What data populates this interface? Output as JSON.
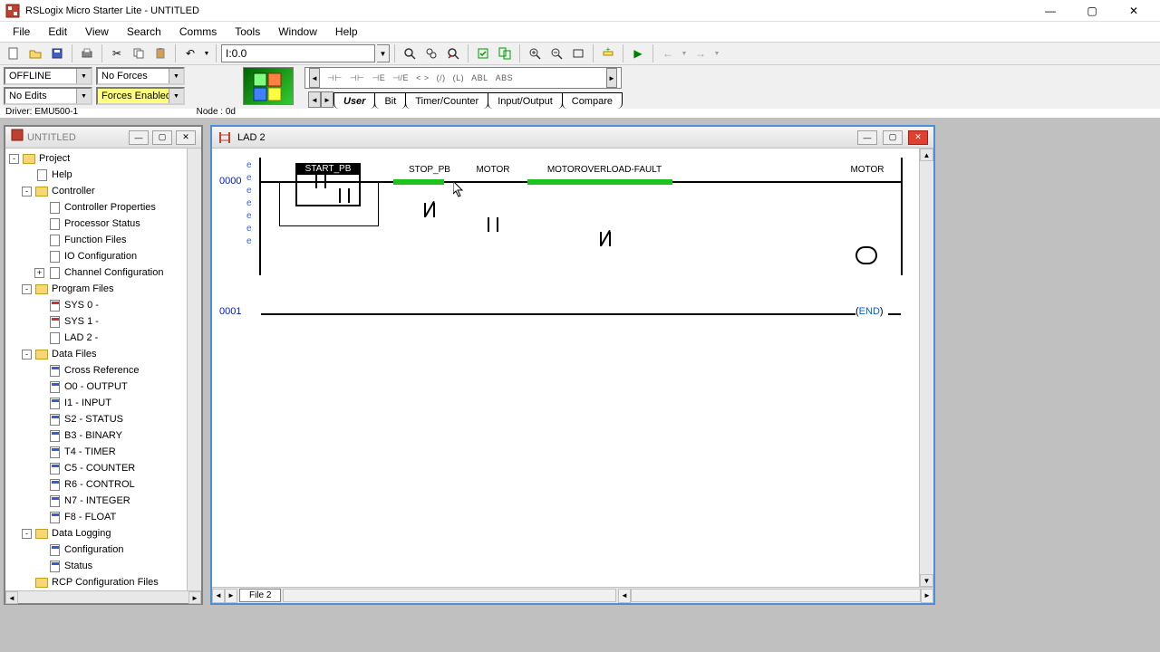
{
  "window": {
    "title": "RSLogix Micro Starter Lite - UNTITLED",
    "min": "—",
    "max": "▢",
    "close": "✕"
  },
  "menu": [
    "File",
    "Edit",
    "View",
    "Search",
    "Comms",
    "Tools",
    "Window",
    "Help"
  ],
  "toolbar1": {
    "addr_value": "I:0.0"
  },
  "status": {
    "mode": "OFFLINE",
    "edits": "No Edits",
    "forces": "No Forces",
    "forces_enabled": "Forces Enabled",
    "driver": "Driver: EMU500-1",
    "node": "Node : 0d"
  },
  "palette": {
    "items": [
      "⊣⊢",
      "⊣⊢",
      "⊣E",
      "⊣/E",
      "< >",
      "(/)",
      "(L)",
      "ABL",
      "ABS"
    ]
  },
  "tabs": [
    "User",
    "Bit",
    "Timer/Counter",
    "Input/Output",
    "Compare"
  ],
  "tree": {
    "title": "UNTITLED",
    "nodes": [
      {
        "d": 0,
        "exp": "-",
        "icon": "folder",
        "label": "Project"
      },
      {
        "d": 1,
        "exp": "",
        "icon": "file",
        "label": "Help"
      },
      {
        "d": 1,
        "exp": "-",
        "icon": "folder",
        "label": "Controller"
      },
      {
        "d": 2,
        "exp": "",
        "icon": "file",
        "label": "Controller Properties"
      },
      {
        "d": 2,
        "exp": "",
        "icon": "file",
        "label": "Processor Status"
      },
      {
        "d": 2,
        "exp": "",
        "icon": "file",
        "label": "Function Files"
      },
      {
        "d": 2,
        "exp": "",
        "icon": "file",
        "label": "IO Configuration"
      },
      {
        "d": 2,
        "exp": "+",
        "icon": "file",
        "label": "Channel Configuration"
      },
      {
        "d": 1,
        "exp": "-",
        "icon": "folder",
        "label": "Program Files"
      },
      {
        "d": 2,
        "exp": "",
        "icon": "filer",
        "label": "SYS 0 -"
      },
      {
        "d": 2,
        "exp": "",
        "icon": "filer",
        "label": "SYS 1 -"
      },
      {
        "d": 2,
        "exp": "",
        "icon": "file",
        "label": "LAD 2 -"
      },
      {
        "d": 1,
        "exp": "-",
        "icon": "folder",
        "label": "Data Files"
      },
      {
        "d": 2,
        "exp": "",
        "icon": "fileb",
        "label": "Cross Reference"
      },
      {
        "d": 2,
        "exp": "",
        "icon": "fileb",
        "label": "O0 - OUTPUT"
      },
      {
        "d": 2,
        "exp": "",
        "icon": "fileb",
        "label": "I1 - INPUT"
      },
      {
        "d": 2,
        "exp": "",
        "icon": "fileb",
        "label": "S2 - STATUS"
      },
      {
        "d": 2,
        "exp": "",
        "icon": "fileb",
        "label": "B3 - BINARY"
      },
      {
        "d": 2,
        "exp": "",
        "icon": "fileb",
        "label": "T4 - TIMER"
      },
      {
        "d": 2,
        "exp": "",
        "icon": "fileb",
        "label": "C5 - COUNTER"
      },
      {
        "d": 2,
        "exp": "",
        "icon": "fileb",
        "label": "R6 - CONTROL"
      },
      {
        "d": 2,
        "exp": "",
        "icon": "fileb",
        "label": "N7 - INTEGER"
      },
      {
        "d": 2,
        "exp": "",
        "icon": "fileb",
        "label": "F8 - FLOAT"
      },
      {
        "d": 1,
        "exp": "-",
        "icon": "folder",
        "label": "Data Logging"
      },
      {
        "d": 2,
        "exp": "",
        "icon": "fileb",
        "label": "Configuration"
      },
      {
        "d": 2,
        "exp": "",
        "icon": "fileb",
        "label": "Status"
      },
      {
        "d": 1,
        "exp": "",
        "icon": "folder",
        "label": "RCP Configuration Files"
      }
    ]
  },
  "ladder": {
    "title": "LAD 2",
    "rung0_num": "0000",
    "rung1_num": "0001",
    "end_label": "END",
    "file_tab": "File 2",
    "tags": {
      "start_pb": "START_PB",
      "stop_pb": "STOP_PB",
      "motor_in": "MOTOR",
      "overload": "MOTOROVERLOAD-FAULT",
      "motor_out": "MOTOR"
    },
    "colors": {
      "energized": "#1ec41e",
      "rung_num": "#0020c0",
      "end": "#0060d0"
    }
  }
}
